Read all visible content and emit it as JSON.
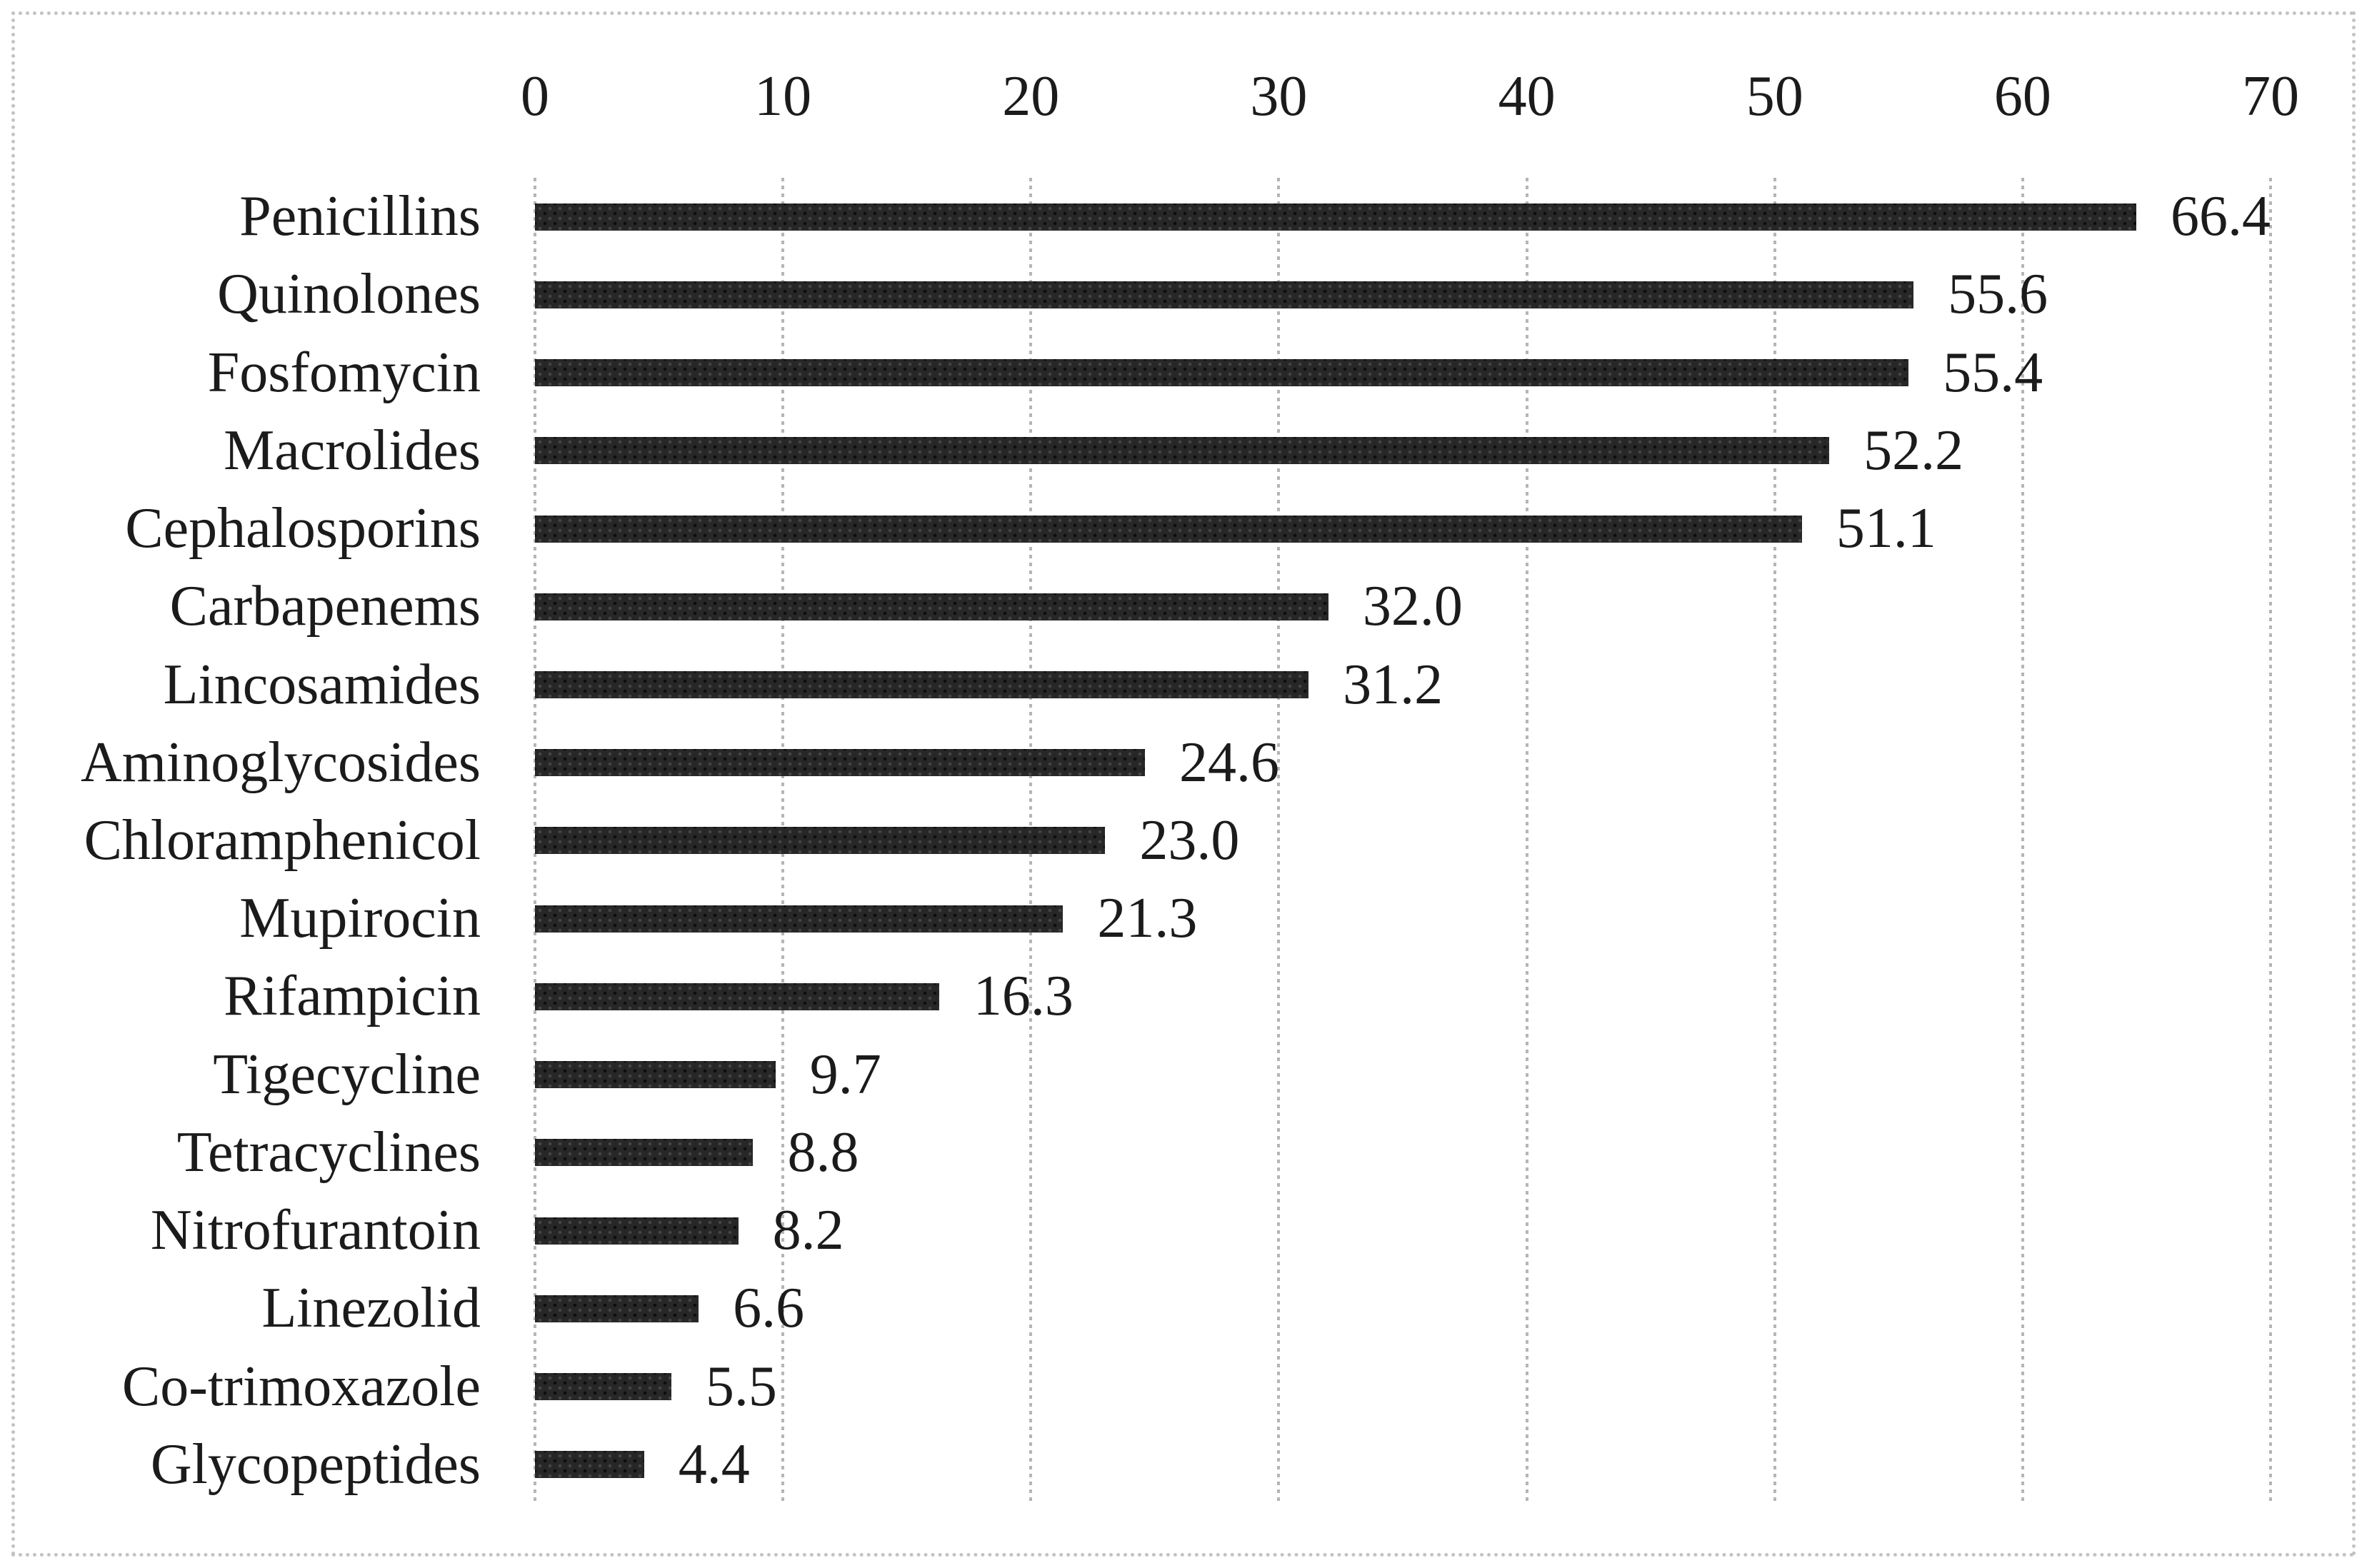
{
  "chart_data": {
    "type": "bar",
    "orientation": "horizontal",
    "title": "",
    "xlabel": "",
    "ylabel": "",
    "categories": [
      "Penicillins",
      "Quinolones",
      "Fosfomycin",
      "Macrolides",
      "Cephalosporins",
      "Carbapenems",
      "Lincosamides",
      "Aminoglycosides",
      "Chloramphenicol",
      "Mupirocin",
      "Rifampicin",
      "Tigecycline",
      "Tetracyclines",
      "Nitrofurantoin",
      "Linezolid",
      "Co-trimoxazole",
      "Glycopeptides"
    ],
    "values": [
      66.4,
      55.6,
      55.4,
      52.2,
      51.1,
      32.0,
      31.2,
      24.6,
      23.0,
      21.3,
      16.3,
      9.7,
      8.8,
      8.2,
      6.6,
      5.5,
      4.4
    ],
    "value_labels": [
      "66.4",
      "55.6",
      "55.4",
      "52.2",
      "51.1",
      "32.0",
      "31.2",
      "24.6",
      "23.0",
      "21.3",
      "16.3",
      "9.7",
      "8.8",
      "8.2",
      "6.6",
      "5.5",
      "4.4"
    ],
    "x_axis": {
      "position": "top",
      "min": 0,
      "max": 70,
      "tick_step": 10,
      "tick_labels": [
        "0",
        "10",
        "20",
        "30",
        "40",
        "50",
        "60",
        "70"
      ]
    },
    "grid": {
      "vertical": true,
      "horizontal": false,
      "style": "dotted"
    },
    "legend": {
      "visible": false
    },
    "data_labels": {
      "visible": true,
      "position": "outside-end"
    },
    "colors": {
      "bar": "#272727",
      "text": "#1b1b1b",
      "gridline": "#b5b5b5",
      "border": "#c3c3c3",
      "background": "#ffffff"
    }
  }
}
